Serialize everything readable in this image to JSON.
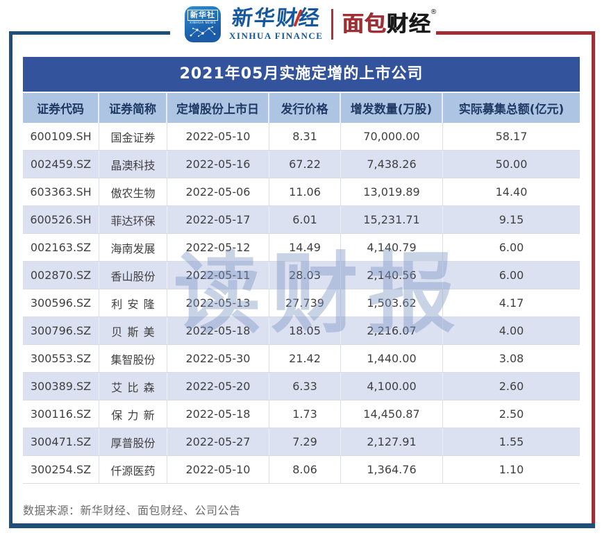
{
  "brand": {
    "xinhua_news_badge": {
      "cn": "新华社",
      "en": "XINHUA NEWS"
    },
    "xinhua_finance": {
      "cn": "新华财经",
      "en": "XINHUA FINANCE"
    },
    "bread_finance": {
      "cn_red": "面包",
      "cn_black": "财经",
      "reg_mark": "®"
    }
  },
  "title": "2021年05月实施定增的上市公司",
  "watermark": "读财报",
  "footer": {
    "source": "数据来源：新华财经、面包财经、公司公告"
  },
  "table": {
    "columns": [
      "证券代码",
      "证券简称",
      "定增股份上市日",
      "发行价格",
      "增发数量(万股)",
      "实际募集总额(亿元)"
    ],
    "rows": [
      [
        "600109.SH",
        "国金证券",
        "2022-05-10",
        "8.31",
        "70,000.00",
        "58.17"
      ],
      [
        "002459.SZ",
        "晶澳科技",
        "2022-05-16",
        "67.22",
        "7,438.26",
        "50.00"
      ],
      [
        "603363.SH",
        "傲农生物",
        "2022-05-06",
        "11.06",
        "13,019.89",
        "14.40"
      ],
      [
        "600526.SH",
        "菲达环保",
        "2022-05-17",
        "6.01",
        "15,231.71",
        "9.15"
      ],
      [
        "002163.SZ",
        "海南发展",
        "2022-05-12",
        "14.49",
        "4,140.79",
        "6.00"
      ],
      [
        "002870.SZ",
        "香山股份",
        "2022-05-11",
        "28.03",
        "2,140.56",
        "6.00"
      ],
      [
        "300596.SZ",
        "利安隆",
        "2022-05-13",
        "27.739",
        "1,503.62",
        "4.17"
      ],
      [
        "300796.SZ",
        "贝斯美",
        "2022-05-18",
        "18.05",
        "2,216.07",
        "4.00"
      ],
      [
        "300553.SZ",
        "集智股份",
        "2022-05-30",
        "21.42",
        "1,440.00",
        "3.08"
      ],
      [
        "300389.SZ",
        "艾比森",
        "2022-05-20",
        "6.33",
        "4,100.00",
        "2.60"
      ],
      [
        "300116.SZ",
        "保力新",
        "2022-05-18",
        "1.73",
        "14,450.87",
        "2.50"
      ],
      [
        "300471.SZ",
        "厚普股份",
        "2022-05-27",
        "7.29",
        "2,127.91",
        "1.55"
      ],
      [
        "300254.SZ",
        "仟源医药",
        "2022-05-10",
        "8.06",
        "1,364.76",
        "1.10"
      ]
    ]
  },
  "chart_data": {
    "type": "table",
    "title": "2021年05月实施定增的上市公司",
    "columns": [
      "证券代码",
      "证券简称",
      "定增股份上市日",
      "发行价格",
      "增发数量(万股)",
      "实际募集总额(亿元)"
    ],
    "rows": [
      [
        "600109.SH",
        "国金证券",
        "2022-05-10",
        8.31,
        70000.0,
        58.17
      ],
      [
        "002459.SZ",
        "晶澳科技",
        "2022-05-16",
        67.22,
        7438.26,
        50.0
      ],
      [
        "603363.SH",
        "傲农生物",
        "2022-05-06",
        11.06,
        13019.89,
        14.4
      ],
      [
        "600526.SH",
        "菲达环保",
        "2022-05-17",
        6.01,
        15231.71,
        9.15
      ],
      [
        "002163.SZ",
        "海南发展",
        "2022-05-12",
        14.49,
        4140.79,
        6.0
      ],
      [
        "002870.SZ",
        "香山股份",
        "2022-05-11",
        28.03,
        2140.56,
        6.0
      ],
      [
        "300596.SZ",
        "利安隆",
        "2022-05-13",
        27.739,
        1503.62,
        4.17
      ],
      [
        "300796.SZ",
        "贝斯美",
        "2022-05-18",
        18.05,
        2216.07,
        4.0
      ],
      [
        "300553.SZ",
        "集智股份",
        "2022-05-30",
        21.42,
        1440.0,
        3.08
      ],
      [
        "300389.SZ",
        "艾比森",
        "2022-05-20",
        6.33,
        4100.0,
        2.6
      ],
      [
        "300116.SZ",
        "保力新",
        "2022-05-18",
        1.73,
        14450.87,
        2.5
      ],
      [
        "300471.SZ",
        "厚普股份",
        "2022-05-27",
        7.29,
        2127.91,
        1.55
      ],
      [
        "300254.SZ",
        "仟源医药",
        "2022-05-10",
        8.06,
        1364.76,
        1.1
      ]
    ]
  },
  "colors": {
    "frame_navy": "#1F4E79",
    "frame_red": "#9E2F34",
    "title_bg": "#33549C",
    "header_bg": "#ADC5E2",
    "header_text": "#1F3864",
    "alt_row_bg": "#DCE1F2",
    "watermark": "#7F97C4",
    "logo_blue": "#1558A0"
  }
}
